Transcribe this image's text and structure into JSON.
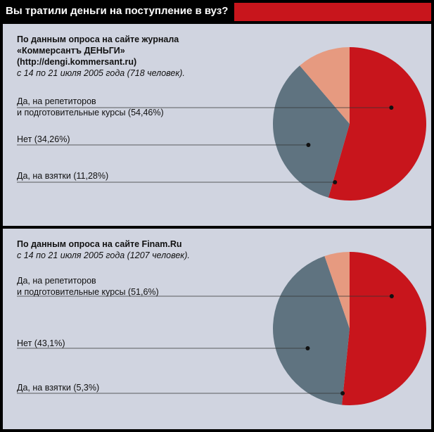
{
  "title": "Вы тратили деньги на поступление в вуз?",
  "colors": {
    "header_bg": "#000000",
    "accent": "#c8151c",
    "panel_bg": "#d0d4e0",
    "slice_tutors": "#c8151c",
    "slice_no": "#5f7380",
    "slice_bribes": "#e69a80"
  },
  "panels": [
    {
      "source_lines": [
        "По данным опроса на сайте журнала",
        "«Коммерсантъ ДЕНЬГИ»",
        "(http://dengi.kommersant.ru)"
      ],
      "period": "с 14 по 21 июля 2005 года (718 человек).",
      "labels": [
        [
          "Да, на репетиторов",
          "и подготовительные курсы (54,46%)"
        ],
        [
          "Нет (34,26%)"
        ],
        [
          "Да, на взятки (11,28%)"
        ]
      ]
    },
    {
      "source_lines": [
        "По данным опроса на сайте Finam.Ru"
      ],
      "period": "с 14 по 21 июля 2005 года (1207 человек).",
      "labels": [
        [
          "Да, на репетиторов",
          "и подготовительные курсы (51,6%)"
        ],
        [
          "Нет (43,1%)"
        ],
        [
          "Да, на взятки (5,3%)"
        ]
      ]
    }
  ],
  "chart_data": [
    {
      "type": "pie",
      "title": "Вы тратили деньги на поступление в вуз?",
      "categories": [
        "Да, на репетиторов и подготовительные курсы",
        "Нет",
        "Да, на взятки"
      ],
      "values": [
        54.46,
        34.26,
        11.28
      ]
    },
    {
      "type": "pie",
      "title": "Вы тратили деньги на поступление в вуз?",
      "categories": [
        "Да, на репетиторов и подготовительные курсы",
        "Нет",
        "Да, на взятки"
      ],
      "values": [
        51.6,
        43.1,
        5.3
      ]
    }
  ]
}
